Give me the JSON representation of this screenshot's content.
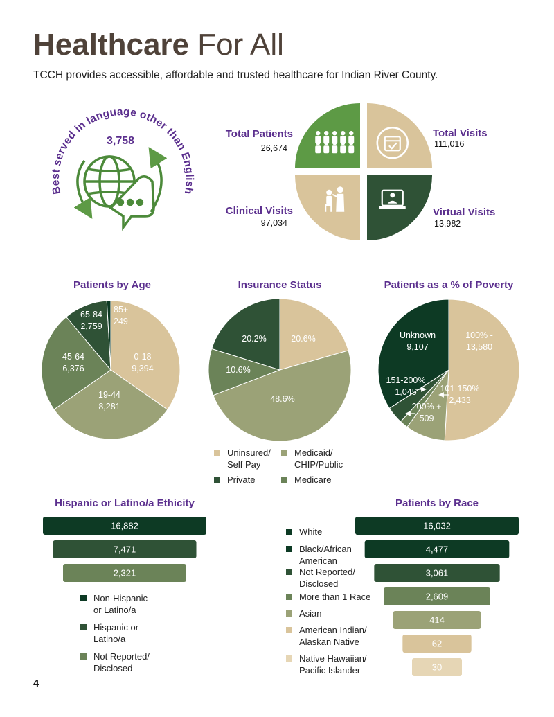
{
  "header": {
    "title_bold": "Healthcare",
    "title_rest": "For All",
    "subtitle": "TCCH provides accessible, affordable and trusted healthcare for Indian River County."
  },
  "language": {
    "arc_text": "Best served in language other than English",
    "value": "3,758",
    "icon": "globe-speech-bubble-icon"
  },
  "stats": [
    {
      "label": "Total Patients",
      "value": "26,674",
      "icon": "crowd-icon",
      "color": "#5d9a45"
    },
    {
      "label": "Total Visits",
      "value": "111,016",
      "icon": "calendar-check-icon",
      "color": "#d9c49b"
    },
    {
      "label": "Clinical Visits",
      "value": "97,034",
      "icon": "doctor-patient-icon",
      "color": "#d9c49b"
    },
    {
      "label": "Virtual Visits",
      "value": "13,982",
      "icon": "telehealth-laptop-icon",
      "color": "#2f5236"
    }
  ],
  "page_number": "4",
  "chart_data": [
    {
      "type": "pie",
      "title": "Patients by Age",
      "slices": [
        {
          "label": "0-18",
          "value": 9394,
          "value_text": "9,394",
          "color": "#d9c49b"
        },
        {
          "label": "19-44",
          "value": 8281,
          "value_text": "8,281",
          "color": "#9ba277"
        },
        {
          "label": "45-64",
          "value": 6376,
          "value_text": "6,376",
          "color": "#6b8358"
        },
        {
          "label": "65-84",
          "value": 2759,
          "value_text": "2,759",
          "color": "#2f5236"
        },
        {
          "label": "85+",
          "value": 249,
          "value_text": "249",
          "color": "#0d3a24"
        }
      ]
    },
    {
      "type": "pie",
      "title": "Insurance Status",
      "slices": [
        {
          "label": "Uninsured/ Self Pay",
          "value": 20.6,
          "value_text": "20.6%",
          "color": "#d9c49b"
        },
        {
          "label": "Medicaid/ CHIP/Public",
          "value": 48.6,
          "value_text": "48.6%",
          "color": "#9ba277"
        },
        {
          "label": "Medicare",
          "value": 10.6,
          "value_text": "10.6%",
          "color": "#6b8358"
        },
        {
          "label": "Private",
          "value": 20.2,
          "value_text": "20.2%",
          "color": "#2f5236"
        }
      ],
      "legend": [
        {
          "label": "Uninsured/\nSelf Pay",
          "color": "#d9c49b"
        },
        {
          "label": "Medicaid/\nCHIP/Public",
          "color": "#9ba277"
        },
        {
          "label": "Private",
          "color": "#2f5236"
        },
        {
          "label": "Medicare",
          "color": "#6b8358"
        }
      ]
    },
    {
      "type": "pie",
      "title": "Patients as a % of Poverty",
      "slices": [
        {
          "label": "100% -",
          "value": 13580,
          "value_text": "13,580",
          "color": "#d9c49b"
        },
        {
          "label": "101-150%",
          "value": 2433,
          "value_text": "2,433",
          "color": "#9ba277"
        },
        {
          "label": "200% +",
          "value": 509,
          "value_text": "509",
          "color": "#6b8358"
        },
        {
          "label": "151-200%",
          "value": 1045,
          "value_text": "1,045",
          "color": "#2f5236"
        },
        {
          "label": "Unknown",
          "value": 9107,
          "value_text": "9,107",
          "color": "#0d3a24"
        }
      ]
    },
    {
      "type": "bar",
      "title": "Hispanic or Latino/a Ethicity",
      "categories": [
        "Non-Hispanic\nor Latino/a",
        "Hispanic or\nLatino/a",
        "Not Reported/\nDisclosed"
      ],
      "values": [
        16882,
        7471,
        2321
      ],
      "value_texts": [
        "16,882",
        "7,471",
        "2,321"
      ],
      "colors": [
        "#0d3a24",
        "#2f5236",
        "#6b8358"
      ]
    },
    {
      "type": "bar",
      "title": "Patients by Race",
      "categories": [
        "White",
        "Black/African\nAmerican",
        "Not Reported/\nDisclosed",
        "More than 1 Race",
        "Asian",
        "American Indian/\nAlaskan Native",
        "Native Hawaiian/\nPacific Islander"
      ],
      "values": [
        16032,
        4477,
        3061,
        2609,
        414,
        62,
        30
      ],
      "value_texts": [
        "16,032",
        "4,477",
        "3,061",
        "2,609",
        "414",
        "62",
        "30"
      ],
      "colors": [
        "#0d3a24",
        "#0d3a24",
        "#2f5236",
        "#6b8358",
        "#9ba277",
        "#d9c49b",
        "#e6d6b5"
      ]
    }
  ]
}
